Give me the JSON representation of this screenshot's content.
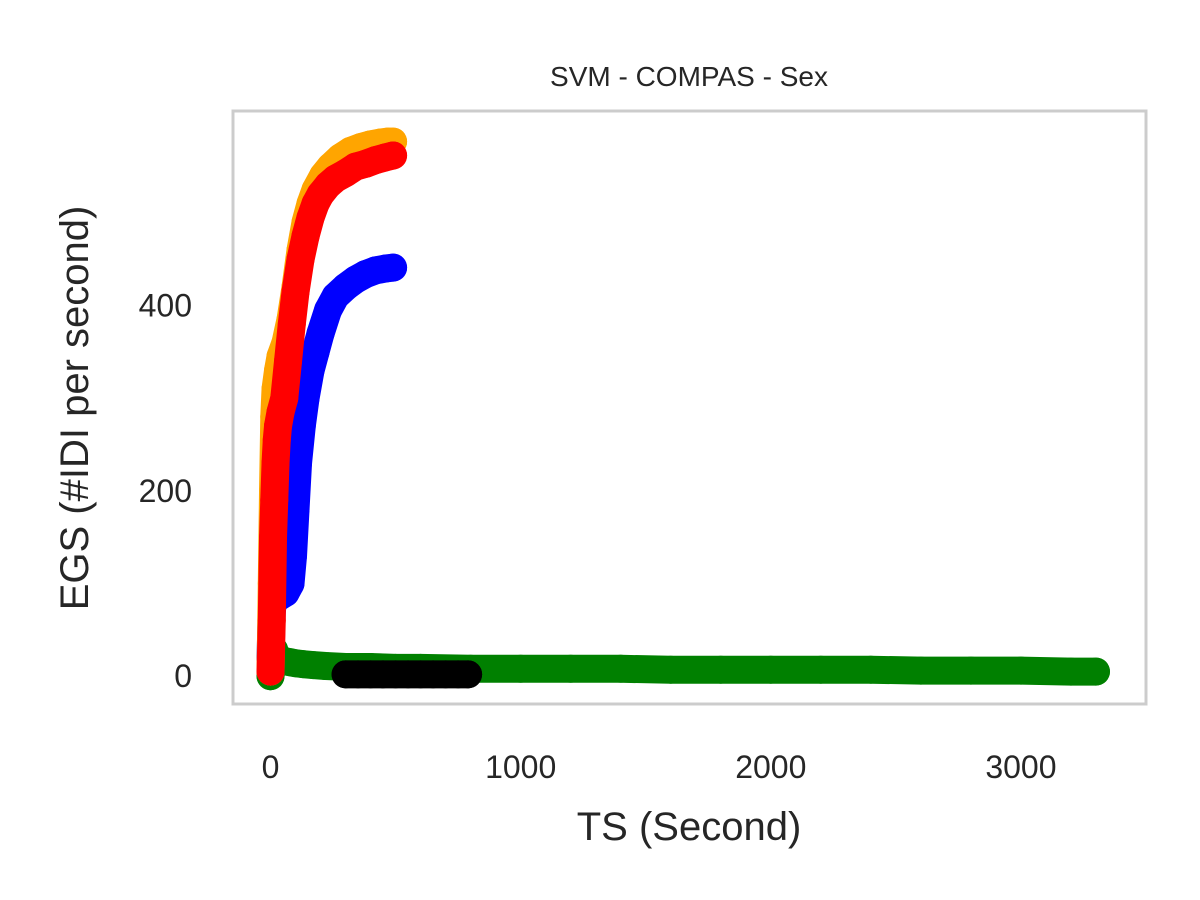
{
  "chart_data": {
    "type": "scatter",
    "title": "SVM - COMPAS - Sex",
    "xlabel": "TS (Second)",
    "ylabel": "EGS (#IDI  per second)",
    "xlim": [
      -150,
      3500
    ],
    "ylim": [
      -30,
      610
    ],
    "xticks": [
      0,
      1000,
      2000,
      3000
    ],
    "yticks": [
      0,
      200,
      400
    ],
    "xtick_labels": [
      "0",
      "1000",
      "2000",
      "3000"
    ],
    "ytick_labels": [
      "0",
      "200",
      "400"
    ],
    "grid": false,
    "frame_color": "#cccccc",
    "series": [
      {
        "color": "#008000",
        "points": [
          [
            0,
            0
          ],
          [
            5,
            12
          ],
          [
            10,
            25
          ],
          [
            15,
            28
          ],
          [
            20,
            22
          ],
          [
            30,
            20
          ],
          [
            40,
            18
          ],
          [
            60,
            16
          ],
          [
            80,
            15
          ],
          [
            100,
            14
          ],
          [
            130,
            13
          ],
          [
            170,
            12
          ],
          [
            220,
            11
          ],
          [
            300,
            10
          ],
          [
            400,
            10
          ],
          [
            500,
            9
          ],
          [
            600,
            9
          ],
          [
            800,
            8
          ],
          [
            1000,
            8
          ],
          [
            1200,
            8
          ],
          [
            1400,
            8
          ],
          [
            1600,
            7
          ],
          [
            1800,
            7
          ],
          [
            2000,
            7
          ],
          [
            2200,
            7
          ],
          [
            2400,
            7
          ],
          [
            2600,
            6
          ],
          [
            2800,
            6
          ],
          [
            3000,
            6
          ],
          [
            3200,
            5
          ],
          [
            3300,
            5
          ]
        ]
      },
      {
        "color": "#000000",
        "points": [
          [
            300,
            2
          ],
          [
            350,
            2
          ],
          [
            400,
            2
          ],
          [
            450,
            2
          ],
          [
            500,
            2
          ],
          [
            550,
            2
          ],
          [
            600,
            2
          ],
          [
            650,
            2
          ],
          [
            700,
            2
          ],
          [
            750,
            2
          ],
          [
            790,
            2
          ]
        ]
      },
      {
        "color": "#0000ff",
        "points": [
          [
            0,
            20
          ],
          [
            5,
            70
          ],
          [
            10,
            80
          ],
          [
            15,
            82
          ],
          [
            30,
            85
          ],
          [
            60,
            90
          ],
          [
            80,
            100
          ],
          [
            90,
            130
          ],
          [
            100,
            180
          ],
          [
            110,
            230
          ],
          [
            125,
            270
          ],
          [
            140,
            300
          ],
          [
            160,
            330
          ],
          [
            180,
            350
          ],
          [
            200,
            370
          ],
          [
            230,
            395
          ],
          [
            260,
            410
          ],
          [
            300,
            420
          ],
          [
            340,
            428
          ],
          [
            380,
            434
          ],
          [
            420,
            438
          ],
          [
            460,
            440
          ],
          [
            490,
            441
          ]
        ]
      },
      {
        "color": "#ffa500",
        "points": [
          [
            0,
            5
          ],
          [
            5,
            100
          ],
          [
            10,
            200
          ],
          [
            15,
            280
          ],
          [
            20,
            310
          ],
          [
            30,
            330
          ],
          [
            40,
            345
          ],
          [
            60,
            360
          ],
          [
            80,
            385
          ],
          [
            100,
            420
          ],
          [
            120,
            460
          ],
          [
            140,
            490
          ],
          [
            160,
            510
          ],
          [
            180,
            525
          ],
          [
            210,
            540
          ],
          [
            240,
            550
          ],
          [
            280,
            560
          ],
          [
            320,
            567
          ],
          [
            360,
            571
          ],
          [
            400,
            574
          ],
          [
            440,
            576
          ],
          [
            470,
            577
          ],
          [
            490,
            577
          ]
        ]
      },
      {
        "color": "#ff0000",
        "points": [
          [
            0,
            5
          ],
          [
            5,
            60
          ],
          [
            10,
            150
          ],
          [
            15,
            190
          ],
          [
            20,
            230
          ],
          [
            25,
            255
          ],
          [
            30,
            270
          ],
          [
            40,
            285
          ],
          [
            55,
            300
          ],
          [
            70,
            340
          ],
          [
            85,
            380
          ],
          [
            100,
            415
          ],
          [
            120,
            450
          ],
          [
            140,
            475
          ],
          [
            160,
            495
          ],
          [
            180,
            510
          ],
          [
            200,
            520
          ],
          [
            230,
            530
          ],
          [
            260,
            537
          ],
          [
            300,
            543
          ],
          [
            340,
            550
          ],
          [
            380,
            553
          ],
          [
            420,
            557
          ],
          [
            460,
            560
          ],
          [
            490,
            562
          ]
        ]
      }
    ]
  }
}
